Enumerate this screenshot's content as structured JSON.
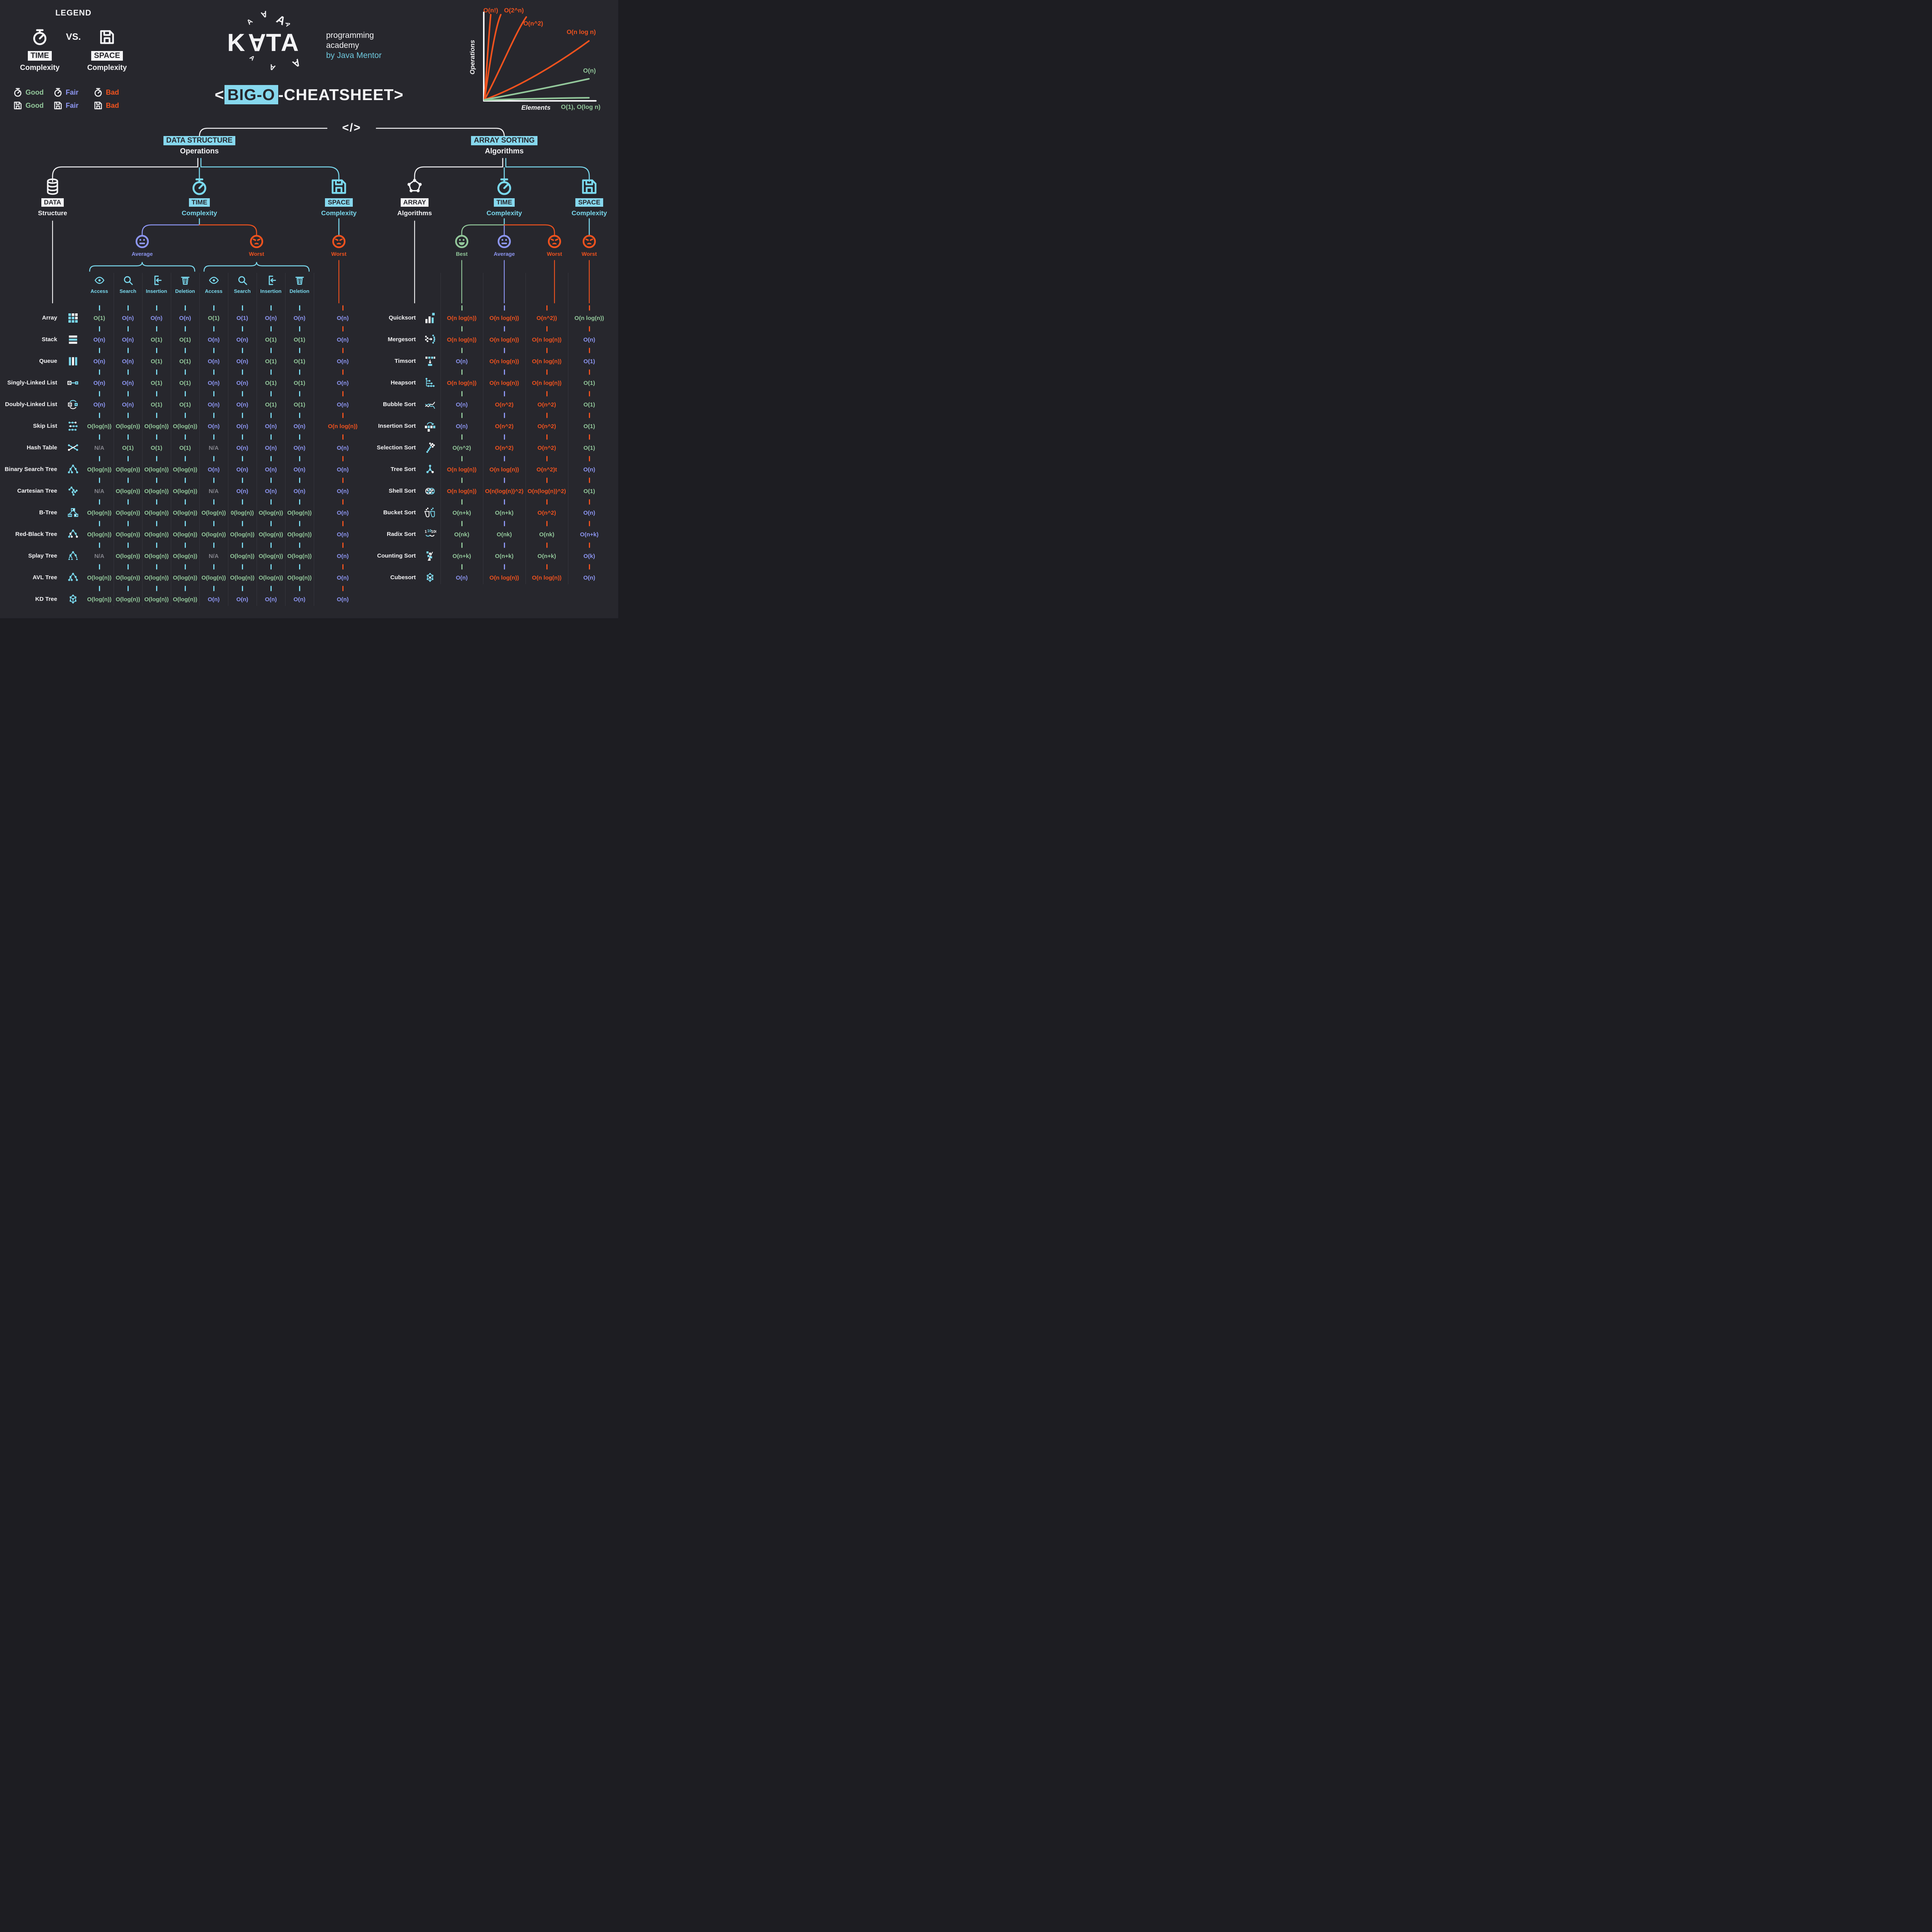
{
  "legend": {
    "title": "LEGEND",
    "vs": "VS.",
    "time": {
      "label": "TIME",
      "sub": "Complexity"
    },
    "space": {
      "label": "SPACE",
      "sub": "Complexity"
    },
    "items": [
      {
        "icon": "stopwatch",
        "rating": "good",
        "label": "Good"
      },
      {
        "icon": "stopwatch",
        "rating": "fair",
        "label": "Fair"
      },
      {
        "icon": "stopwatch",
        "rating": "bad",
        "label": "Bad"
      },
      {
        "icon": "floppy",
        "rating": "good",
        "label": "Good"
      },
      {
        "icon": "floppy",
        "rating": "fair",
        "label": "Fair"
      },
      {
        "icon": "floppy",
        "rating": "bad",
        "label": "Bad"
      }
    ]
  },
  "brand": {
    "logo": "KATA",
    "line1": "programming",
    "line2": "academy",
    "line3": "by Java Mentor"
  },
  "title": {
    "open": "<",
    "highlight": "BIG-O",
    "rest": "-CHEATSHEET",
    "close": ">"
  },
  "chart": {
    "ylabel": "Operations",
    "xlabel": "Elements",
    "lbl_nfact": "O(n!)",
    "lbl_2n": "O(2^n)",
    "lbl_n2": "O(n^2)",
    "lbl_nlogn": "O(n log n)",
    "lbl_n": "O(n)",
    "lbl_const": "O(1), O(log n)"
  },
  "chart_data": {
    "type": "line",
    "title": "Big-O growth curves",
    "xlabel": "Elements",
    "ylabel": "Operations",
    "grid": false,
    "series": [
      {
        "name": "O(n!)",
        "color": "#f0521e",
        "shape": "factorial, steepest"
      },
      {
        "name": "O(2^n)",
        "color": "#f0521e",
        "shape": "exponential"
      },
      {
        "name": "O(n^2)",
        "color": "#f0521e",
        "shape": "quadratic"
      },
      {
        "name": "O(n log n)",
        "color": "#f0521e",
        "shape": "linearithmic"
      },
      {
        "name": "O(n)",
        "color": "#93c89b",
        "shape": "linear"
      },
      {
        "name": "O(1), O(log n)",
        "color": "#93c89b",
        "shape": "near flat"
      }
    ]
  },
  "tree": {
    "root": "</>",
    "left": {
      "tag": "DATA STRUCTURE",
      "sub": "Operations",
      "children": [
        {
          "icon": "database",
          "tag": "DATA",
          "sub": "Structure",
          "style": "white"
        },
        {
          "icon": "stopwatch",
          "tag": "TIME",
          "sub": "Complexity",
          "style": "cyan"
        },
        {
          "icon": "floppy",
          "tag": "SPACE",
          "sub": "Complexity",
          "style": "cyan"
        }
      ]
    },
    "right": {
      "tag": "ARRAY SORTING",
      "sub": "Algorithms",
      "children": [
        {
          "icon": "network",
          "tag": "ARRAY",
          "sub": "Algorithms",
          "style": "white"
        },
        {
          "icon": "stopwatch",
          "tag": "TIME",
          "sub": "Complexity",
          "style": "cyan"
        },
        {
          "icon": "floppy",
          "tag": "SPACE",
          "sub": "Complexity",
          "style": "cyan"
        }
      ]
    }
  },
  "groups": {
    "ds_avg": {
      "label": "Average",
      "mood": "neutral",
      "rating": "fair"
    },
    "ds_worst": {
      "label": "Worst",
      "mood": "sad",
      "rating": "bad"
    },
    "ds_space": {
      "label": "Worst",
      "mood": "sad",
      "rating": "bad"
    },
    "sort_best": {
      "label": "Best",
      "mood": "happy",
      "rating": "good"
    },
    "sort_avg": {
      "label": "Average",
      "mood": "neutral",
      "rating": "fair"
    },
    "sort_worst": {
      "label": "Worst",
      "mood": "sad",
      "rating": "bad"
    },
    "sort_space": {
      "label": "Worst",
      "mood": "sad",
      "rating": "bad"
    }
  },
  "operations": [
    "Access",
    "Search",
    "Insertion",
    "Deletion"
  ],
  "ds_table": {
    "rows": [
      {
        "name": "Array",
        "icon": "array",
        "avg": [
          {
            "t": "O(1)",
            "r": "g"
          },
          {
            "t": "O(n)",
            "r": "f"
          },
          {
            "t": "O(n)",
            "r": "f"
          },
          {
            "t": "O(n)",
            "r": "f"
          }
        ],
        "worst": [
          {
            "t": "O(1)",
            "r": "g"
          },
          {
            "t": "O(1)",
            "r": "f"
          },
          {
            "t": "O(n)",
            "r": "f"
          },
          {
            "t": "O(n)",
            "r": "f"
          }
        ],
        "space": {
          "t": "O(n)",
          "r": "f"
        }
      },
      {
        "name": "Stack",
        "icon": "stack",
        "avg": [
          {
            "t": "O(n)",
            "r": "f"
          },
          {
            "t": "O(n)",
            "r": "f"
          },
          {
            "t": "O(1)",
            "r": "g"
          },
          {
            "t": "O(1)",
            "r": "g"
          }
        ],
        "worst": [
          {
            "t": "O(n)",
            "r": "f"
          },
          {
            "t": "O(n)",
            "r": "f"
          },
          {
            "t": "O(1)",
            "r": "g"
          },
          {
            "t": "O(1)",
            "r": "g"
          }
        ],
        "space": {
          "t": "O(n)",
          "r": "f"
        }
      },
      {
        "name": "Queue",
        "icon": "queue",
        "avg": [
          {
            "t": "O(n)",
            "r": "f"
          },
          {
            "t": "O(n)",
            "r": "f"
          },
          {
            "t": "O(1)",
            "r": "g"
          },
          {
            "t": "O(1)",
            "r": "g"
          }
        ],
        "worst": [
          {
            "t": "O(n)",
            "r": "f"
          },
          {
            "t": "O(n)",
            "r": "f"
          },
          {
            "t": "O(1)",
            "r": "g"
          },
          {
            "t": "O(1)",
            "r": "g"
          }
        ],
        "space": {
          "t": "O(n)",
          "r": "f"
        }
      },
      {
        "name": "Singly-Linked List",
        "icon": "sll",
        "avg": [
          {
            "t": "O(n)",
            "r": "f"
          },
          {
            "t": "O(n)",
            "r": "f"
          },
          {
            "t": "O(1)",
            "r": "g"
          },
          {
            "t": "O(1)",
            "r": "g"
          }
        ],
        "worst": [
          {
            "t": "O(n)",
            "r": "f"
          },
          {
            "t": "O(n)",
            "r": "f"
          },
          {
            "t": "O(1)",
            "r": "g"
          },
          {
            "t": "O(1)",
            "r": "g"
          }
        ],
        "space": {
          "t": "O(n)",
          "r": "f"
        }
      },
      {
        "name": "Doubly-Linked List",
        "icon": "dll",
        "avg": [
          {
            "t": "O(n)",
            "r": "f"
          },
          {
            "t": "O(n)",
            "r": "f"
          },
          {
            "t": "O(1)",
            "r": "g"
          },
          {
            "t": "O(1)",
            "r": "g"
          }
        ],
        "worst": [
          {
            "t": "O(n)",
            "r": "f"
          },
          {
            "t": "O(n)",
            "r": "f"
          },
          {
            "t": "O(1)",
            "r": "g"
          },
          {
            "t": "O(1)",
            "r": "g"
          }
        ],
        "space": {
          "t": "O(n)",
          "r": "f"
        }
      },
      {
        "name": "Skip List",
        "icon": "skiplist",
        "avg": [
          {
            "t": "O(log(n))",
            "r": "g"
          },
          {
            "t": "O(log(n))",
            "r": "g"
          },
          {
            "t": "O(log(n))",
            "r": "g"
          },
          {
            "t": "O(log(n))",
            "r": "g"
          }
        ],
        "worst": [
          {
            "t": "O(n)",
            "r": "f"
          },
          {
            "t": "O(n)",
            "r": "f"
          },
          {
            "t": "O(n)",
            "r": "f"
          },
          {
            "t": "O(n)",
            "r": "f"
          }
        ],
        "space": {
          "t": "O(n log(n))",
          "r": "b"
        }
      },
      {
        "name": "Hash Table",
        "icon": "hash",
        "avg": [
          {
            "t": "N/A",
            "r": "n"
          },
          {
            "t": "O(1)",
            "r": "g"
          },
          {
            "t": "O(1)",
            "r": "g"
          },
          {
            "t": "O(1)",
            "r": "g"
          }
        ],
        "worst": [
          {
            "t": "N/A",
            "r": "n"
          },
          {
            "t": "O(n)",
            "r": "f"
          },
          {
            "t": "O(n)",
            "r": "f"
          },
          {
            "t": "O(n)",
            "r": "f"
          }
        ],
        "space": {
          "t": "O(n)",
          "r": "f"
        }
      },
      {
        "name": "Binary Search Tree",
        "icon": "bst",
        "avg": [
          {
            "t": "O(log(n))",
            "r": "g"
          },
          {
            "t": "O(log(n))",
            "r": "g"
          },
          {
            "t": "O(log(n))",
            "r": "g"
          },
          {
            "t": "O(log(n))",
            "r": "g"
          }
        ],
        "worst": [
          {
            "t": "O(n)",
            "r": "f"
          },
          {
            "t": "O(n)",
            "r": "f"
          },
          {
            "t": "O(n)",
            "r": "f"
          },
          {
            "t": "O(n)",
            "r": "f"
          }
        ],
        "space": {
          "t": "O(n)",
          "r": "f"
        }
      },
      {
        "name": "Cartesian Tree",
        "icon": "cartesian",
        "avg": [
          {
            "t": "N/A",
            "r": "n"
          },
          {
            "t": "O(log(n))",
            "r": "g"
          },
          {
            "t": "O(log(n))",
            "r": "g"
          },
          {
            "t": "O(log(n))",
            "r": "g"
          }
        ],
        "worst": [
          {
            "t": "N/A",
            "r": "n"
          },
          {
            "t": "O(n)",
            "r": "f"
          },
          {
            "t": "O(n)",
            "r": "f"
          },
          {
            "t": "O(n)",
            "r": "f"
          }
        ],
        "space": {
          "t": "O(n)",
          "r": "f"
        }
      },
      {
        "name": "B-Tree",
        "icon": "btree",
        "avg": [
          {
            "t": "O(log(n))",
            "r": "g"
          },
          {
            "t": "O(log(n))",
            "r": "g"
          },
          {
            "t": "O(log(n))",
            "r": "g"
          },
          {
            "t": "O(log(n))",
            "r": "g"
          }
        ],
        "worst": [
          {
            "t": "O(log(n))",
            "r": "g"
          },
          {
            "t": "0(log(n))",
            "r": "g"
          },
          {
            "t": "O(log(n))",
            "r": "g"
          },
          {
            "t": "O(log(n))",
            "r": "g"
          }
        ],
        "space": {
          "t": "O(n)",
          "r": "f"
        }
      },
      {
        "name": "Red-Black Tree",
        "icon": "rbtree",
        "avg": [
          {
            "t": "O(log(n))",
            "r": "g"
          },
          {
            "t": "O(log(n))",
            "r": "g"
          },
          {
            "t": "O(log(n))",
            "r": "g"
          },
          {
            "t": "O(log(n))",
            "r": "g"
          }
        ],
        "worst": [
          {
            "t": "O(log(n))",
            "r": "g"
          },
          {
            "t": "O(log(n))",
            "r": "g"
          },
          {
            "t": "O(log(n))",
            "r": "g"
          },
          {
            "t": "O(log(n))",
            "r": "g"
          }
        ],
        "space": {
          "t": "O(n)",
          "r": "f"
        }
      },
      {
        "name": "Splay Tree",
        "icon": "splay",
        "avg": [
          {
            "t": "N/A",
            "r": "n"
          },
          {
            "t": "O(log(n))",
            "r": "g"
          },
          {
            "t": "O(log(n))",
            "r": "g"
          },
          {
            "t": "O(log(n))",
            "r": "g"
          }
        ],
        "worst": [
          {
            "t": "N/A",
            "r": "n"
          },
          {
            "t": "O(log(n))",
            "r": "g"
          },
          {
            "t": "O(log(n))",
            "r": "g"
          },
          {
            "t": "O(log(n))",
            "r": "g"
          }
        ],
        "space": {
          "t": "O(n)",
          "r": "f"
        }
      },
      {
        "name": "AVL Tree",
        "icon": "avl",
        "avg": [
          {
            "t": "O(log(n))",
            "r": "g"
          },
          {
            "t": "O(log(n))",
            "r": "g"
          },
          {
            "t": "O(log(n))",
            "r": "g"
          },
          {
            "t": "O(log(n))",
            "r": "g"
          }
        ],
        "worst": [
          {
            "t": "O(log(n))",
            "r": "g"
          },
          {
            "t": "O(log(n))",
            "r": "g"
          },
          {
            "t": "O(log(n))",
            "r": "g"
          },
          {
            "t": "O(log(n))",
            "r": "g"
          }
        ],
        "space": {
          "t": "O(n)",
          "r": "f"
        }
      },
      {
        "name": "KD Tree",
        "icon": "kd",
        "avg": [
          {
            "t": "O(log(n))",
            "r": "g"
          },
          {
            "t": "O(log(n))",
            "r": "g"
          },
          {
            "t": "O(log(n))",
            "r": "g"
          },
          {
            "t": "O(log(n))",
            "r": "g"
          }
        ],
        "worst": [
          {
            "t": "O(n)",
            "r": "f"
          },
          {
            "t": "O(n)",
            "r": "f"
          },
          {
            "t": "O(n)",
            "r": "f"
          },
          {
            "t": "O(n)",
            "r": "f"
          }
        ],
        "space": {
          "t": "O(n)",
          "r": "f"
        }
      }
    ]
  },
  "sort_table": {
    "rows": [
      {
        "name": "Quicksort",
        "icon": "quicksort",
        "best": {
          "t": "O(n log(n))",
          "r": "b"
        },
        "avg": {
          "t": "O(n log(n))",
          "r": "b"
        },
        "worst": {
          "t": "O(n^2))",
          "r": "b"
        },
        "space": {
          "t": "O(n log(n))",
          "r": "g"
        }
      },
      {
        "name": "Mergesort",
        "icon": "mergesort",
        "best": {
          "t": "O(n log(n))",
          "r": "b"
        },
        "avg": {
          "t": "O(n log(n))",
          "r": "b"
        },
        "worst": {
          "t": "O(n log(n))",
          "r": "b"
        },
        "space": {
          "t": "O(n)",
          "r": "f"
        }
      },
      {
        "name": "Timsort",
        "icon": "timsort",
        "best": {
          "t": "O(n)",
          "r": "f"
        },
        "avg": {
          "t": "O(n log(n))",
          "r": "b"
        },
        "worst": {
          "t": "O(n log(n))",
          "r": "b"
        },
        "space": {
          "t": "O(1)",
          "r": "f"
        }
      },
      {
        "name": "Heapsort",
        "icon": "heapsort",
        "best": {
          "t": "O(n log(n))",
          "r": "b"
        },
        "avg": {
          "t": "O(n log(n))",
          "r": "b"
        },
        "worst": {
          "t": "O(n log(n))",
          "r": "b"
        },
        "space": {
          "t": "O(1)",
          "r": "g"
        }
      },
      {
        "name": "Bubble Sort",
        "icon": "bubble",
        "best": {
          "t": "O(n)",
          "r": "f"
        },
        "avg": {
          "t": "O(n^2)",
          "r": "b"
        },
        "worst": {
          "t": "O(n^2)",
          "r": "b"
        },
        "space": {
          "t": "O(1)",
          "r": "g"
        }
      },
      {
        "name": "Insertion Sort",
        "icon": "insertionsort",
        "best": {
          "t": "O(n)",
          "r": "f"
        },
        "avg": {
          "t": "O(n^2)",
          "r": "b"
        },
        "worst": {
          "t": "O(n^2)",
          "r": "b"
        },
        "space": {
          "t": "O(1)",
          "r": "g"
        }
      },
      {
        "name": "Selection Sort",
        "icon": "selectionsort",
        "best": {
          "t": "O(n^2)",
          "r": "g"
        },
        "avg": {
          "t": "O(n^2)",
          "r": "b"
        },
        "worst": {
          "t": "O(n^2)",
          "r": "b"
        },
        "space": {
          "t": "O(1)",
          "r": "g"
        }
      },
      {
        "name": "Tree Sort",
        "icon": "treesort",
        "best": {
          "t": "O(n log(n))",
          "r": "b"
        },
        "avg": {
          "t": "O(n log(n))",
          "r": "b"
        },
        "worst": {
          "t": "O(n^2)t",
          "r": "b"
        },
        "space": {
          "t": "O(n)",
          "r": "f"
        }
      },
      {
        "name": "Shell Sort",
        "icon": "shellsort",
        "best": {
          "t": "O(n log(n))",
          "r": "b"
        },
        "avg": {
          "t": "O(n(log(n))^2)",
          "r": "b"
        },
        "worst": {
          "t": "O(n(log(n))^2)",
          "r": "b"
        },
        "space": {
          "t": "O(1)",
          "r": "g"
        }
      },
      {
        "name": "Bucket Sort",
        "icon": "bucketsort",
        "best": {
          "t": "O(n+k)",
          "r": "g"
        },
        "avg": {
          "t": "O(n+k)",
          "r": "g"
        },
        "worst": {
          "t": "O(n^2)",
          "r": "b"
        },
        "space": {
          "t": "O(n)",
          "r": "f"
        }
      },
      {
        "name": "Radix Sort",
        "icon": "radixsort",
        "best": {
          "t": "O(nk)",
          "r": "g"
        },
        "avg": {
          "t": "O(nk)",
          "r": "g"
        },
        "worst": {
          "t": "O(nk)",
          "r": "g"
        },
        "space": {
          "t": "O(n+k)",
          "r": "f"
        }
      },
      {
        "name": "Counting Sort",
        "icon": "countingsort",
        "best": {
          "t": "O(n+k)",
          "r": "g"
        },
        "avg": {
          "t": "O(n+k)",
          "r": "g"
        },
        "worst": {
          "t": "O(n+k)",
          "r": "g"
        },
        "space": {
          "t": "O(k)",
          "r": "f"
        }
      },
      {
        "name": "Cubesort",
        "icon": "cubesort",
        "best": {
          "t": "O(n)",
          "r": "f"
        },
        "avg": {
          "t": "O(n log(n))",
          "r": "b"
        },
        "worst": {
          "t": "O(n log(n))",
          "r": "b"
        },
        "space": {
          "t": "O(n)",
          "r": "f"
        }
      }
    ]
  },
  "colors": {
    "background": "#27272d",
    "accent_cyan": "#7ad9ee",
    "highlight_bg": "#86d8ee",
    "good": "#93c89b",
    "fair": "#8d96f2",
    "bad": "#f0521e",
    "na": "#84848c"
  }
}
